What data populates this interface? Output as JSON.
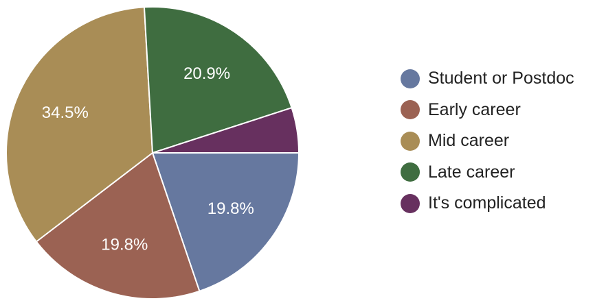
{
  "chart_data": {
    "type": "pie",
    "categories": [
      "Student or Postdoc",
      "Early career",
      "Mid career",
      "Late career",
      "It's complicated"
    ],
    "values": [
      19.8,
      19.8,
      34.5,
      20.9,
      5.0
    ],
    "value_labels": [
      "19.8%",
      "19.8%",
      "34.5%",
      "20.9%",
      ""
    ],
    "colors": [
      "#66789f",
      "#9b6253",
      "#a98d56",
      "#3f6d40",
      "#67305f"
    ],
    "start_angle_deg": 0,
    "direction": "clockwise",
    "legend_position": "right"
  }
}
